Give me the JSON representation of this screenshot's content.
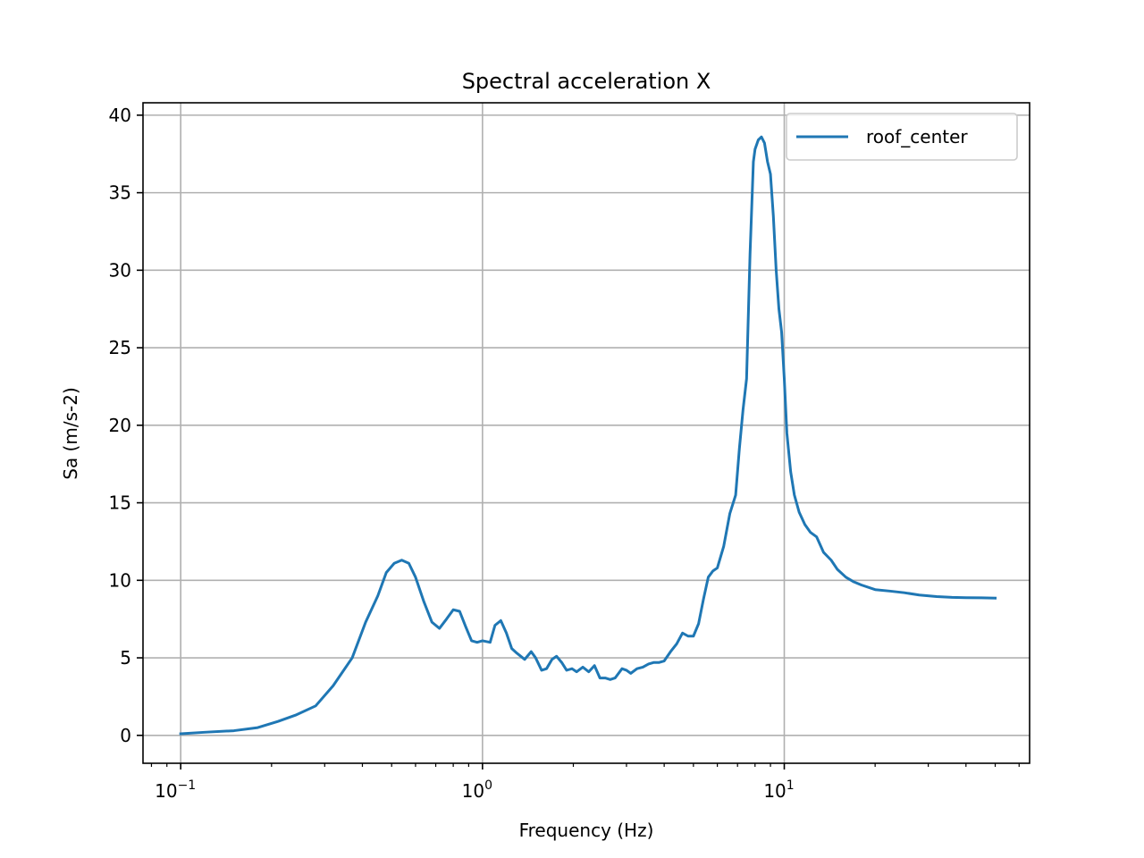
{
  "chart_data": {
    "type": "line",
    "title": "Spectral acceleration X",
    "xlabel": "Frequency (Hz)",
    "ylabel": "Sa (m/s-2)",
    "xscale": "log",
    "xlim": [
      0.075,
      65
    ],
    "ylim": [
      -1.8,
      40.8
    ],
    "yticks": [
      0,
      5,
      10,
      15,
      20,
      25,
      30,
      35,
      40
    ],
    "xticks": [
      {
        "value": 0.1,
        "base": "10",
        "exp": "−1"
      },
      {
        "value": 1,
        "base": "10",
        "exp": "0"
      },
      {
        "value": 10,
        "base": "10",
        "exp": "1"
      }
    ],
    "grid": true,
    "legend_position": "top-right",
    "series": [
      {
        "name": "roof_center",
        "color": "#1f77b4",
        "x": [
          0.1,
          0.12,
          0.15,
          0.18,
          0.21,
          0.24,
          0.28,
          0.32,
          0.37,
          0.41,
          0.45,
          0.48,
          0.51,
          0.54,
          0.57,
          0.6,
          0.64,
          0.68,
          0.72,
          0.76,
          0.8,
          0.84,
          0.88,
          0.92,
          0.96,
          1.0,
          1.06,
          1.1,
          1.15,
          1.2,
          1.25,
          1.3,
          1.38,
          1.45,
          1.5,
          1.57,
          1.63,
          1.7,
          1.76,
          1.83,
          1.9,
          1.98,
          2.05,
          2.15,
          2.25,
          2.35,
          2.45,
          2.55,
          2.65,
          2.75,
          2.9,
          3.0,
          3.1,
          3.25,
          3.4,
          3.55,
          3.7,
          3.85,
          4.0,
          4.2,
          4.4,
          4.6,
          4.8,
          5.0,
          5.2,
          5.4,
          5.6,
          5.8,
          6.0,
          6.3,
          6.6,
          6.9,
          7.1,
          7.3,
          7.5,
          7.7,
          7.9,
          8.0,
          8.2,
          8.4,
          8.6,
          8.8,
          9.0,
          9.2,
          9.4,
          9.6,
          9.8,
          10.0,
          10.2,
          10.5,
          10.8,
          11.2,
          11.7,
          12.2,
          12.8,
          13.5,
          14.3,
          15.0,
          16.0,
          17.0,
          18.0,
          20.0,
          22.5,
          25.0,
          28.0,
          32.0,
          36.0,
          40.0,
          45.0,
          50.0
        ],
        "y": [
          0.1,
          0.2,
          0.3,
          0.5,
          0.9,
          1.3,
          1.9,
          3.2,
          5.0,
          7.3,
          9.0,
          10.5,
          11.1,
          11.3,
          11.1,
          10.2,
          8.6,
          7.3,
          6.9,
          7.5,
          8.1,
          8.0,
          7.0,
          6.1,
          6.0,
          6.1,
          6.0,
          7.1,
          7.4,
          6.6,
          5.6,
          5.3,
          4.9,
          5.4,
          5.0,
          4.2,
          4.3,
          4.9,
          5.1,
          4.7,
          4.2,
          4.3,
          4.1,
          4.4,
          4.1,
          4.5,
          3.7,
          3.7,
          3.6,
          3.7,
          4.3,
          4.2,
          4.0,
          4.3,
          4.4,
          4.6,
          4.7,
          4.7,
          4.8,
          5.4,
          5.9,
          6.6,
          6.4,
          6.4,
          7.2,
          8.8,
          10.2,
          10.6,
          10.8,
          12.2,
          14.3,
          15.5,
          18.5,
          21.0,
          23.0,
          31.0,
          37.0,
          37.8,
          38.4,
          38.6,
          38.2,
          37.0,
          36.2,
          33.5,
          30.0,
          27.5,
          26.0,
          23.0,
          19.5,
          17.0,
          15.5,
          14.4,
          13.6,
          13.1,
          12.8,
          11.8,
          11.3,
          10.7,
          10.2,
          9.9,
          9.7,
          9.4,
          9.3,
          9.2,
          9.05,
          8.95,
          8.9,
          8.88,
          8.87,
          8.85
        ]
      }
    ]
  }
}
